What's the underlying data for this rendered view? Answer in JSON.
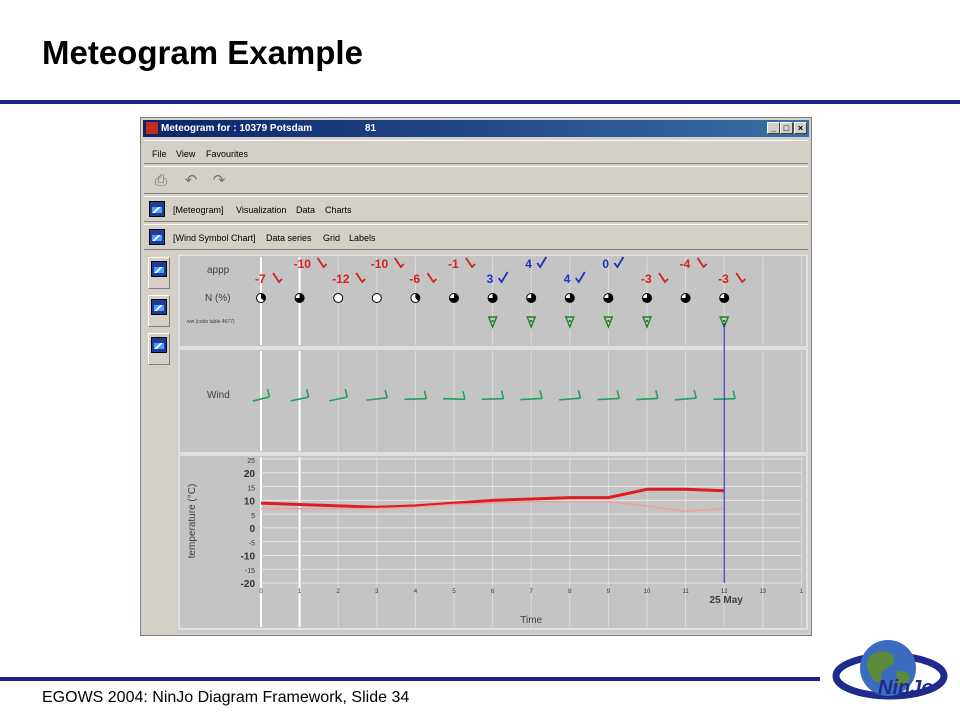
{
  "slide": {
    "title": "Meteogram Example",
    "footer": "EGOWS 2004: NinJo Diagram Framework, Slide 34"
  },
  "window": {
    "title": "Meteogram for : 10379 Potsdam",
    "number": "81",
    "controls": {
      "minimize": "_",
      "maximize": "□",
      "close": "×"
    }
  },
  "menubar": [
    "File",
    "View",
    "Favourites"
  ],
  "toolbar": {
    "icons": [
      "print-icon",
      "undo-icon",
      "redo-icon"
    ]
  },
  "layer_bar_1": {
    "items": [
      "[Meteogram]",
      "Visualization",
      "Data",
      "Charts"
    ]
  },
  "layer_bar_2": {
    "items": [
      "[Wind Symbol Chart]",
      "Data series",
      "Grid",
      "Labels"
    ]
  },
  "colors": {
    "accent_blue": "#1e1e8c",
    "warm_value": "#d42020",
    "cold_value": "#2030c0",
    "wind_green": "#20a060",
    "symbol_green": "#208020",
    "current_time_line": "#2020c0"
  },
  "chart_data": [
    {
      "type": "table",
      "row_labels": [
        "appp",
        "N (%)",
        "ww (code table 4677)"
      ],
      "appp_upper": [
        {
          "x": 1,
          "value": "-10",
          "color": "red"
        },
        {
          "x": 3,
          "value": "-10",
          "color": "red"
        },
        {
          "x": 5,
          "value": "-1",
          "color": "red"
        },
        {
          "x": 7,
          "value": "4",
          "color": "blue"
        },
        {
          "x": 9,
          "value": "0",
          "color": "blue"
        },
        {
          "x": 11,
          "value": "-4",
          "color": "red"
        }
      ],
      "appp_lower": [
        {
          "x": 0,
          "value": "-7",
          "color": "red"
        },
        {
          "x": 2,
          "value": "-12",
          "color": "red"
        },
        {
          "x": 4,
          "value": "-6",
          "color": "red"
        },
        {
          "x": 6,
          "value": "3",
          "color": "blue"
        },
        {
          "x": 8,
          "value": "4",
          "color": "blue"
        },
        {
          "x": 10,
          "value": "-3",
          "color": "red"
        },
        {
          "x": 12,
          "value": "-3",
          "color": "red"
        }
      ],
      "cloud_cover_eighths": [
        3,
        6,
        0,
        0,
        3,
        6,
        6,
        6,
        6,
        6,
        6,
        6,
        6
      ],
      "weather_symbols_x": [
        6,
        7,
        8,
        9,
        10,
        12
      ]
    },
    {
      "type": "line",
      "row_label": "Wind",
      "x": [
        0,
        1,
        2,
        3,
        4,
        5,
        6,
        7,
        8,
        9,
        10,
        11,
        12
      ],
      "wind_direction_deg": [
        230,
        235,
        235,
        250,
        265,
        275,
        265,
        260,
        255,
        260,
        260,
        255,
        265
      ]
    },
    {
      "type": "line",
      "ylabel": "temperature (°C)",
      "xlabel": "Time",
      "date_label": "25 May",
      "ylim": [
        -20,
        25
      ],
      "yticks": [
        25,
        20,
        15,
        10,
        5,
        0,
        -5,
        -10,
        -15,
        -20
      ],
      "xlim": [
        0,
        14
      ],
      "xticks": [
        "0",
        "1",
        "2",
        "3",
        "4",
        "5",
        "6",
        "7",
        "8",
        "9",
        "10",
        "11",
        "12",
        "13",
        "1"
      ],
      "current_time_x": 12,
      "grid": true,
      "series": [
        {
          "color": "#dc1e1e",
          "x": [
            0,
            1,
            2,
            3,
            4,
            5,
            6,
            7,
            8,
            9,
            10,
            11,
            12
          ],
          "values": [
            9,
            8.5,
            8,
            7.5,
            8,
            9,
            10,
            10.5,
            11,
            11,
            14,
            14,
            13.5
          ]
        },
        {
          "color": "#f0a0a0",
          "x": [
            0,
            1,
            2,
            3,
            4,
            5,
            6,
            7,
            8,
            9,
            10,
            11,
            12
          ],
          "values": [
            7,
            7,
            7,
            7,
            7.5,
            8.5,
            9,
            9.5,
            9.5,
            9.5,
            8,
            6,
            7
          ]
        }
      ]
    }
  ],
  "logo": {
    "text": "NinJo"
  }
}
